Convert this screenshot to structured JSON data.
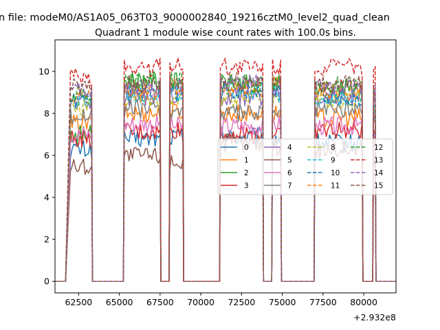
{
  "figure": {
    "suptitle": "n file: modeM0/AS1A05_063T03_9000002840_19216cztM0_level2_quad_clean"
  },
  "chart_data": {
    "type": "line",
    "title": "Quadrant 1 module wise count rates with 100.0s bins.",
    "xlabel": "",
    "ylabel": "",
    "x_offset_label": "+2.932e8",
    "xlim": [
      61050,
      81980
    ],
    "ylim": [
      -0.55,
      11.5
    ],
    "x_ticks": [
      62500,
      65000,
      67500,
      70000,
      72500,
      75000,
      77500,
      80000
    ],
    "x_tick_labels": [
      "62500",
      "65000",
      "67500",
      "70000",
      "72500",
      "75000",
      "77500",
      "80000"
    ],
    "y_ticks": [
      0,
      2,
      4,
      6,
      8,
      10
    ],
    "y_tick_labels": [
      "0",
      "2",
      "4",
      "6",
      "8",
      "10"
    ],
    "grid": false,
    "legend": {
      "placement": "center-right",
      "ncol": 4
    },
    "bin_seconds": 100,
    "segments": [
      {
        "x_start": 62000,
        "x_end": 63300
      },
      {
        "x_start": 65300,
        "x_end": 67500
      },
      {
        "x_start": 68100,
        "x_end": 68900
      },
      {
        "x_start": 71200,
        "x_end": 73800
      },
      {
        "x_start": 74400,
        "x_end": 74900
      },
      {
        "x_start": 77000,
        "x_end": 79900
      },
      {
        "x_start": 80600,
        "x_end": 80700
      }
    ],
    "series": [
      {
        "name": "0",
        "color": "#1f77b4",
        "dash": "solid",
        "segment_levels": [
          6.3,
          6.8,
          6.9,
          6.9,
          6.8,
          6.6,
          6.4
        ]
      },
      {
        "name": "1",
        "color": "#ff7f0e",
        "dash": "solid",
        "segment_levels": [
          7.5,
          8.0,
          8.1,
          8.0,
          8.0,
          7.8,
          7.5
        ]
      },
      {
        "name": "2",
        "color": "#2ca02c",
        "dash": "solid",
        "segment_levels": [
          7.0,
          9.6,
          9.5,
          9.4,
          9.4,
          9.2,
          7.6
        ]
      },
      {
        "name": "3",
        "color": "#d62728",
        "dash": "solid",
        "segment_levels": [
          6.8,
          7.1,
          7.2,
          7.0,
          7.1,
          7.2,
          7.0
        ]
      },
      {
        "name": "4",
        "color": "#9467bd",
        "dash": "solid",
        "segment_levels": [
          8.5,
          8.8,
          8.8,
          8.8,
          8.9,
          8.8,
          8.6
        ]
      },
      {
        "name": "5",
        "color": "#8c564b",
        "dash": "solid",
        "segment_levels": [
          5.5,
          6.0,
          5.7,
          6.6,
          6.4,
          6.3,
          5.6
        ]
      },
      {
        "name": "6",
        "color": "#e377c2",
        "dash": "solid",
        "segment_levels": [
          7.0,
          7.5,
          7.4,
          7.4,
          7.5,
          7.4,
          6.9
        ]
      },
      {
        "name": "7",
        "color": "#7f7f7f",
        "dash": "solid",
        "segment_levels": [
          7.9,
          8.2,
          8.1,
          8.0,
          8.0,
          8.2,
          7.8
        ]
      },
      {
        "name": "8",
        "color": "#bcbd22",
        "dash": "dashed",
        "segment_levels": [
          8.3,
          8.7,
          8.6,
          8.8,
          8.7,
          8.7,
          8.2
        ]
      },
      {
        "name": "9",
        "color": "#17becf",
        "dash": "dashed",
        "segment_levels": [
          8.5,
          9.0,
          9.0,
          9.1,
          8.9,
          8.8,
          8.3
        ]
      },
      {
        "name": "10",
        "color": "#1f77b4",
        "dash": "dashed",
        "segment_levels": [
          8.6,
          8.9,
          9.0,
          9.1,
          9.0,
          8.8,
          8.6
        ]
      },
      {
        "name": "11",
        "color": "#ff7f0e",
        "dash": "dashed",
        "segment_levels": [
          8.9,
          9.1,
          9.2,
          9.2,
          9.3,
          9.1,
          8.8
        ]
      },
      {
        "name": "12",
        "color": "#2ca02c",
        "dash": "dashed",
        "segment_levels": [
          9.0,
          9.5,
          9.6,
          9.4,
          9.5,
          9.3,
          9.0
        ]
      },
      {
        "name": "13",
        "color": "#d62728",
        "dash": "dashed",
        "segment_levels": [
          9.7,
          10.2,
          10.4,
          10.2,
          10.3,
          10.2,
          9.8
        ]
      },
      {
        "name": "14",
        "color": "#9467bd",
        "dash": "dashed",
        "segment_levels": [
          9.0,
          9.2,
          9.3,
          9.4,
          9.3,
          9.2,
          8.9
        ]
      },
      {
        "name": "15",
        "color": "#8c564b",
        "dash": "dashed",
        "segment_levels": [
          9.2,
          9.4,
          9.5,
          9.6,
          9.5,
          9.4,
          9.1
        ]
      }
    ]
  }
}
